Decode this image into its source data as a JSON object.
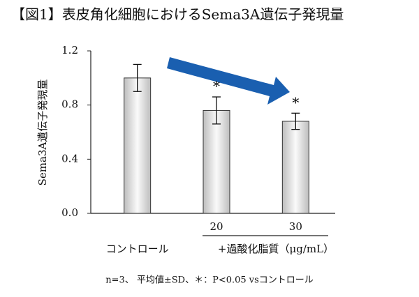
{
  "chart_data": {
    "type": "bar",
    "title": "【図1】表皮角化細胞におけるSema3A遺伝子発現量",
    "y_label": "Sema3A遺伝子発現量",
    "categories": [
      "コントロール",
      "20",
      "30"
    ],
    "group_label": "+過酸化脂質（μg/mL）",
    "values": [
      1.0,
      0.76,
      0.68
    ],
    "errors": [
      0.1,
      0.1,
      0.06
    ],
    "significance": [
      null,
      "*",
      "*"
    ],
    "ylim": [
      0,
      1.2
    ],
    "yticks": [
      {
        "value": 0,
        "label": "0.0"
      },
      0.4,
      0.8,
      1.2
    ],
    "footnote": "n=3、 平均値±SD、＊：P<0.05 vsコントロール"
  }
}
